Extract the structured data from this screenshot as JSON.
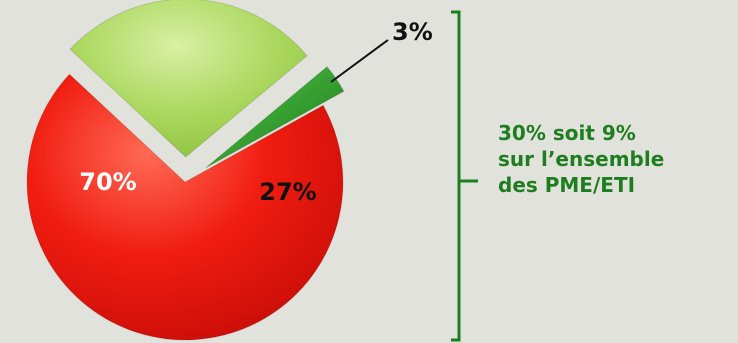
{
  "chart_data": {
    "type": "pie",
    "slices": [
      {
        "label": "70%",
        "value": 70,
        "color": "#e8120c",
        "exploded": false
      },
      {
        "label": "27%",
        "value": 27,
        "color": "#a8d65a",
        "exploded": true
      },
      {
        "label": "3%",
        "value": 3,
        "color": "#2e9e2e",
        "exploded": true
      }
    ],
    "legend": "none"
  },
  "annotation": {
    "lines": [
      "30% soit 9%",
      "sur l’ensemble",
      "des PME/ETI"
    ],
    "color": "#1e7d1e",
    "bracket_color": "#1e7d1e"
  }
}
